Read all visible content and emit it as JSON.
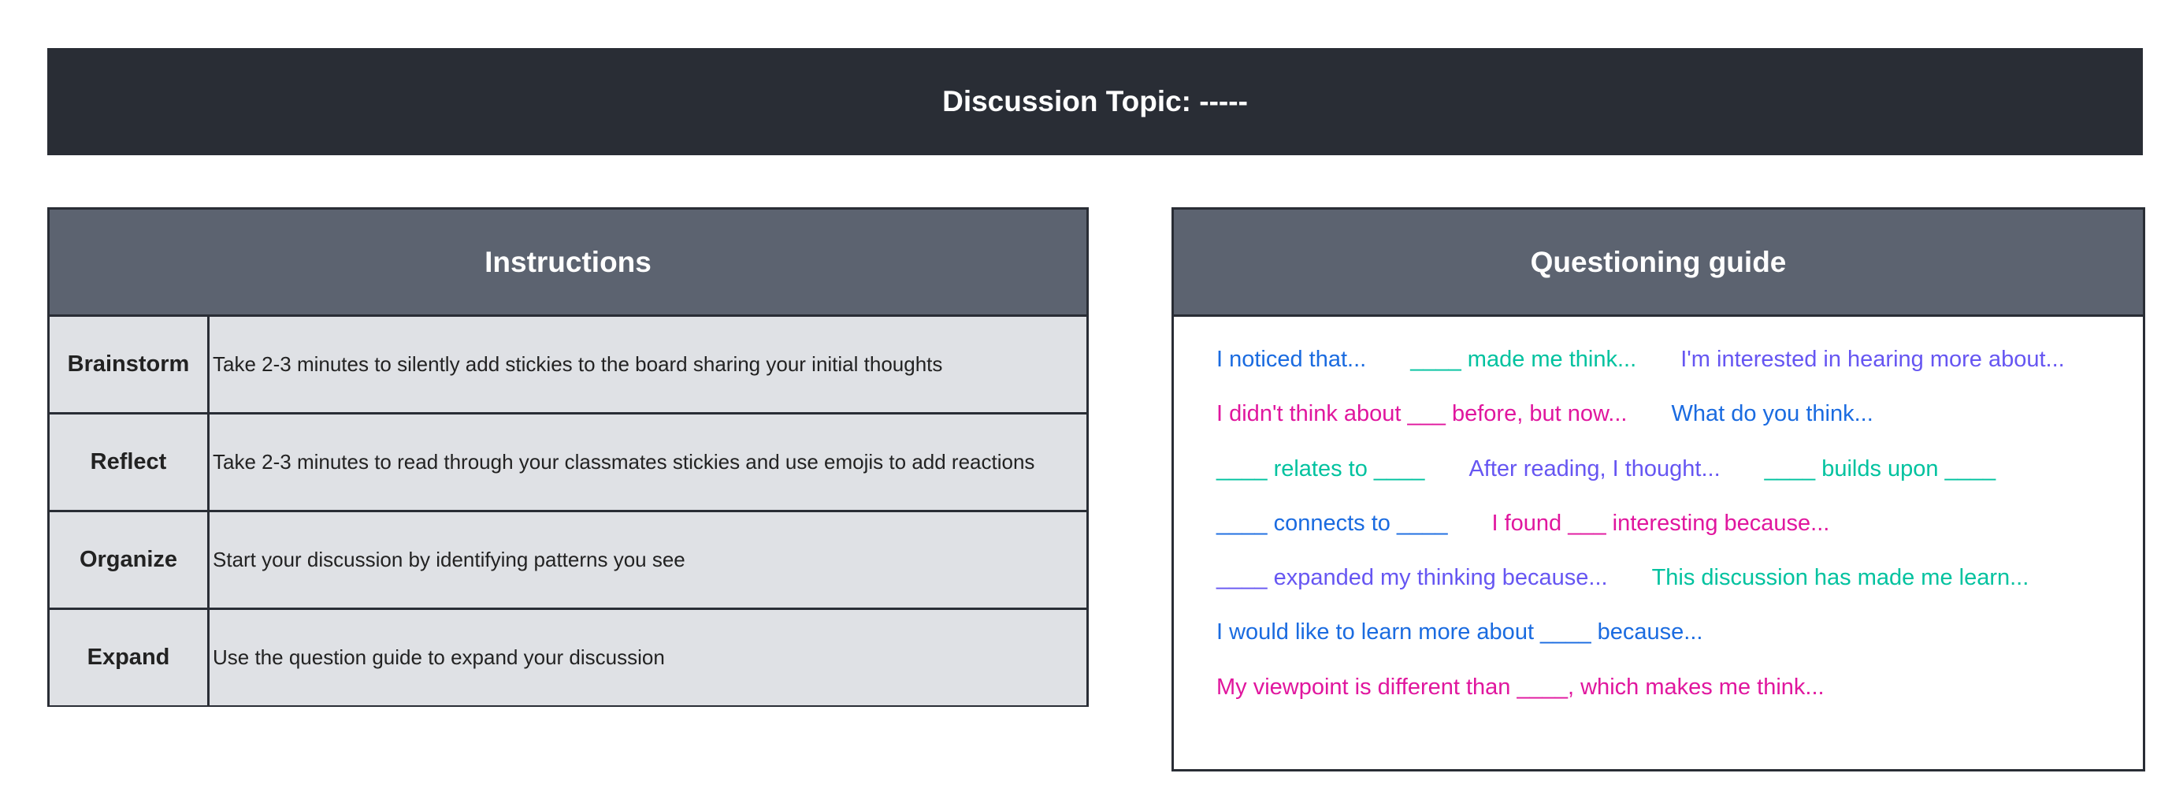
{
  "header": {
    "title": "Discussion Topic: -----"
  },
  "instructions": {
    "title": "Instructions",
    "rows": [
      {
        "label": "Brainstorm",
        "text": "Take 2-3 minutes to silently add stickies to the board sharing your initial thoughts"
      },
      {
        "label": "Reflect",
        "text": "Take 2-3 minutes to read through your classmates stickies and use emojis to add reactions"
      },
      {
        "label": "Organize",
        "text": "Start your discussion by identifying patterns you see"
      },
      {
        "label": "Expand",
        "text": "Use the question guide to expand your discussion"
      }
    ]
  },
  "guide": {
    "title": "Questioning guide",
    "colors": {
      "blue": "#1a6be0",
      "teal": "#00c29f",
      "purple": "#6656f2",
      "magenta": "#e0169e"
    },
    "lines": [
      [
        {
          "text": "I noticed that...",
          "color": "#1a6be0"
        },
        {
          "text": "____ made me think...",
          "color": "#00c29f"
        },
        {
          "text": "I'm interested in hearing more about...",
          "color": "#6656f2"
        }
      ],
      [
        {
          "text": "I didn't think about ___ before, but now...",
          "color": "#e0169e"
        },
        {
          "text": "What do you think...",
          "color": "#1a6be0"
        }
      ],
      [
        {
          "text": "____ relates to ____",
          "color": "#00c29f"
        },
        {
          "text": "After reading, I thought...",
          "color": "#6656f2"
        },
        {
          "text": "____ builds upon ____",
          "color": "#00c29f"
        }
      ],
      [
        {
          "text": "____ connects to ____",
          "color": "#1a6be0"
        },
        {
          "text": "I found ___ interesting because...",
          "color": "#e0169e"
        }
      ],
      [
        {
          "text": "____ expanded my thinking because...",
          "color": "#6656f2"
        },
        {
          "text": "This discussion has made me learn...",
          "color": "#00c29f"
        }
      ],
      [
        {
          "text": "I would like to learn more about  ____ because...",
          "color": "#1a6be0"
        }
      ],
      [
        {
          "text": "My viewpoint is different than ____, which makes me think...",
          "color": "#e0169e"
        }
      ]
    ]
  }
}
